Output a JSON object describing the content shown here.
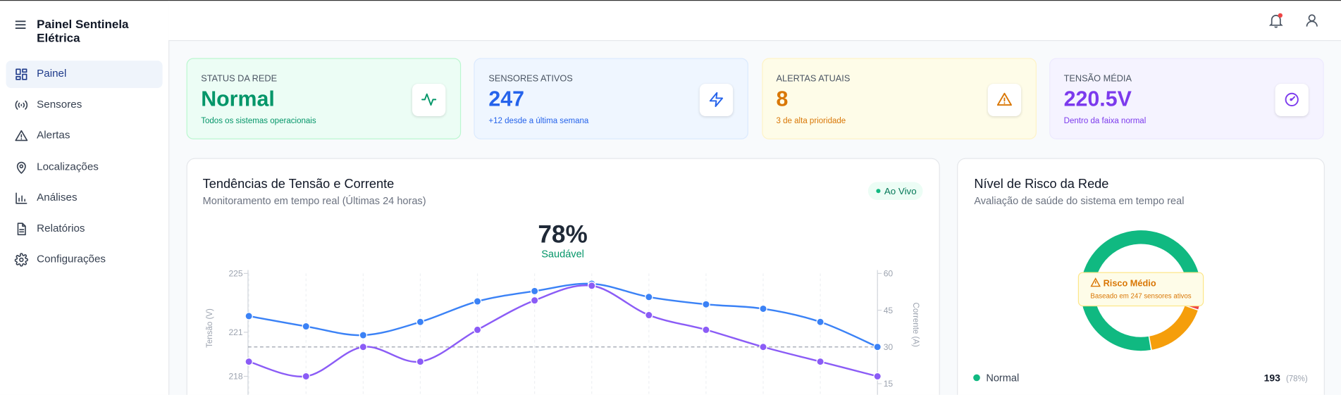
{
  "header": {
    "title": "Painel Sentinela Elétrica"
  },
  "sidebar": {
    "items": [
      "Painel",
      "Sensores",
      "Alertas",
      "Localizações",
      "Análises",
      "Relatórios",
      "Configurações"
    ]
  },
  "cards": [
    {
      "label": "STATUS DA REDE",
      "value": "Normal",
      "note": "Todos os sistemas operacionais"
    },
    {
      "label": "SENSORES ATIVOS",
      "value": "247",
      "note": "+12 desde a última semana"
    },
    {
      "label": "ALERTAS ATUAIS",
      "value": "8",
      "note": "3 de alta prioridade"
    },
    {
      "label": "TENSÃO MÉDIA",
      "value": "220.5V",
      "note": "Dentro da faixa normal"
    }
  ],
  "chart_data": [
    {
      "type": "line",
      "title": "Tendências de Tensão e Corrente",
      "subtitle": "Monitoramento em tempo real (Últimas 24 horas)",
      "badge": "Ao Vivo",
      "score": "78%",
      "score_label": "Saudável",
      "ylabel": "Tensão (V)",
      "y2label": "Corrente (A)",
      "ylim": [
        215,
        225
      ],
      "yticks": [
        218,
        221,
        225
      ],
      "y2lim": [
        0,
        60
      ],
      "y2ticks": [
        15,
        30,
        45,
        60
      ],
      "reference_line": {
        "value": 30,
        "axis": "y2"
      },
      "series": [
        {
          "color": "#3b82f6",
          "values": [
            222.1,
            221.4,
            220.8,
            221.7,
            223.1,
            223.8,
            224.3,
            223.4,
            222.9,
            222.6,
            221.7,
            220.0
          ]
        },
        {
          "color": "#8b5cf6",
          "axis": "y2",
          "values": [
            24,
            18,
            30,
            24,
            37,
            49,
            55,
            43,
            37,
            30,
            24,
            18
          ]
        }
      ]
    },
    {
      "type": "pie",
      "title": "Nível de Risco da Rede",
      "subtitle": "Avaliação de saúde do sistema em tempo real",
      "categories": [
        "Normal",
        null,
        null
      ],
      "values": [
        78,
        5,
        17
      ],
      "value_labels": [
        "(78%)",
        null,
        null
      ],
      "counts": [
        193,
        null,
        null
      ],
      "colors": [
        "#10b981",
        "#ef4444",
        "#f59e0b"
      ],
      "annotation": {
        "title": "Risco Médio",
        "text": "Baseado em 247 sensores ativos"
      }
    }
  ]
}
